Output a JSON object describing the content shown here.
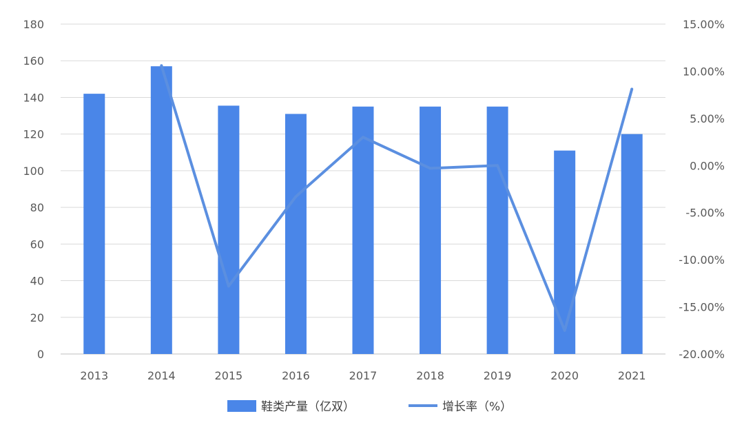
{
  "chart_data": {
    "type": "bar",
    "categories": [
      "2013",
      "2014",
      "2015",
      "2016",
      "2017",
      "2018",
      "2019",
      "2020",
      "2021"
    ],
    "series": [
      {
        "name": "鞋类产量（亿双）",
        "type": "bar",
        "axis": "left",
        "values": [
          142,
          157,
          135.5,
          131,
          135,
          135,
          135,
          111,
          120
        ],
        "color": "#4A86E8"
      },
      {
        "name": "增长率（%）",
        "type": "line",
        "axis": "right",
        "values": [
          null,
          10.6,
          -12.8,
          -3.3,
          3.0,
          -0.3,
          0.0,
          -17.5,
          8.1
        ],
        "color": "#5B8FE0"
      }
    ],
    "y_left": {
      "ylim": [
        0,
        180
      ],
      "ticks": [
        "0",
        "20",
        "40",
        "60",
        "80",
        "100",
        "120",
        "140",
        "160",
        "180"
      ]
    },
    "y_right": {
      "ylim": [
        -20,
        15
      ],
      "ticks": [
        "-20.00%",
        "-15.00%",
        "-10.00%",
        "-5.00%",
        "0.00%",
        "5.00%",
        "10.00%",
        "15.00%"
      ]
    },
    "grid": true,
    "legend": "bottom"
  }
}
